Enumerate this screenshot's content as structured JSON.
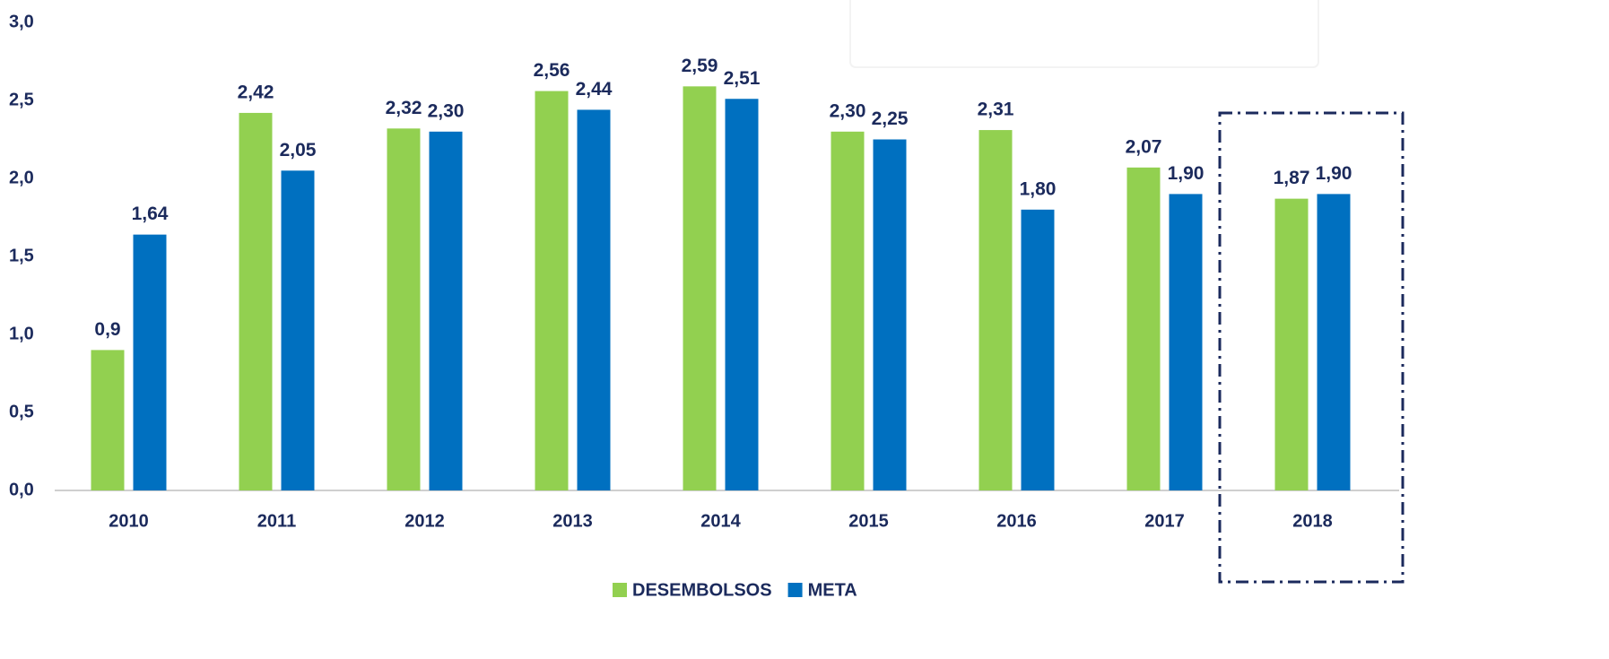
{
  "chart_data": {
    "type": "bar",
    "categories": [
      "2010",
      "2011",
      "2012",
      "2013",
      "2014",
      "2015",
      "2016",
      "2017",
      "2018"
    ],
    "series": [
      {
        "name": "DESEMBOLSOS",
        "color": "#92d050",
        "values": [
          0.9,
          2.42,
          2.32,
          2.56,
          2.59,
          2.3,
          2.31,
          2.07,
          1.87
        ],
        "value_labels": [
          "0,9",
          "2,42",
          "2,32",
          "2,56",
          "2,59",
          "2,30",
          "2,31",
          "2,07",
          "1,87"
        ]
      },
      {
        "name": "META",
        "color": "#0070c0",
        "values": [
          1.64,
          2.05,
          2.3,
          2.44,
          2.51,
          2.25,
          1.8,
          1.9,
          1.9
        ],
        "value_labels": [
          "1,64",
          "2,05",
          "2,30",
          "2,44",
          "2,51",
          "2,25",
          "1,80",
          "1,90",
          "1,90"
        ]
      }
    ],
    "ylim": [
      0,
      3
    ],
    "yticks": [
      {
        "value": 0,
        "label": "0,0"
      },
      {
        "value": 0.5,
        "label": "0,5"
      },
      {
        "value": 1,
        "label": "1,0"
      },
      {
        "value": 1.5,
        "label": "1,5"
      },
      {
        "value": 2,
        "label": "2,0"
      },
      {
        "value": 2.5,
        "label": "2,5"
      },
      {
        "value": 3,
        "label": "3,0"
      }
    ],
    "grid": false,
    "legend": "bottom"
  }
}
